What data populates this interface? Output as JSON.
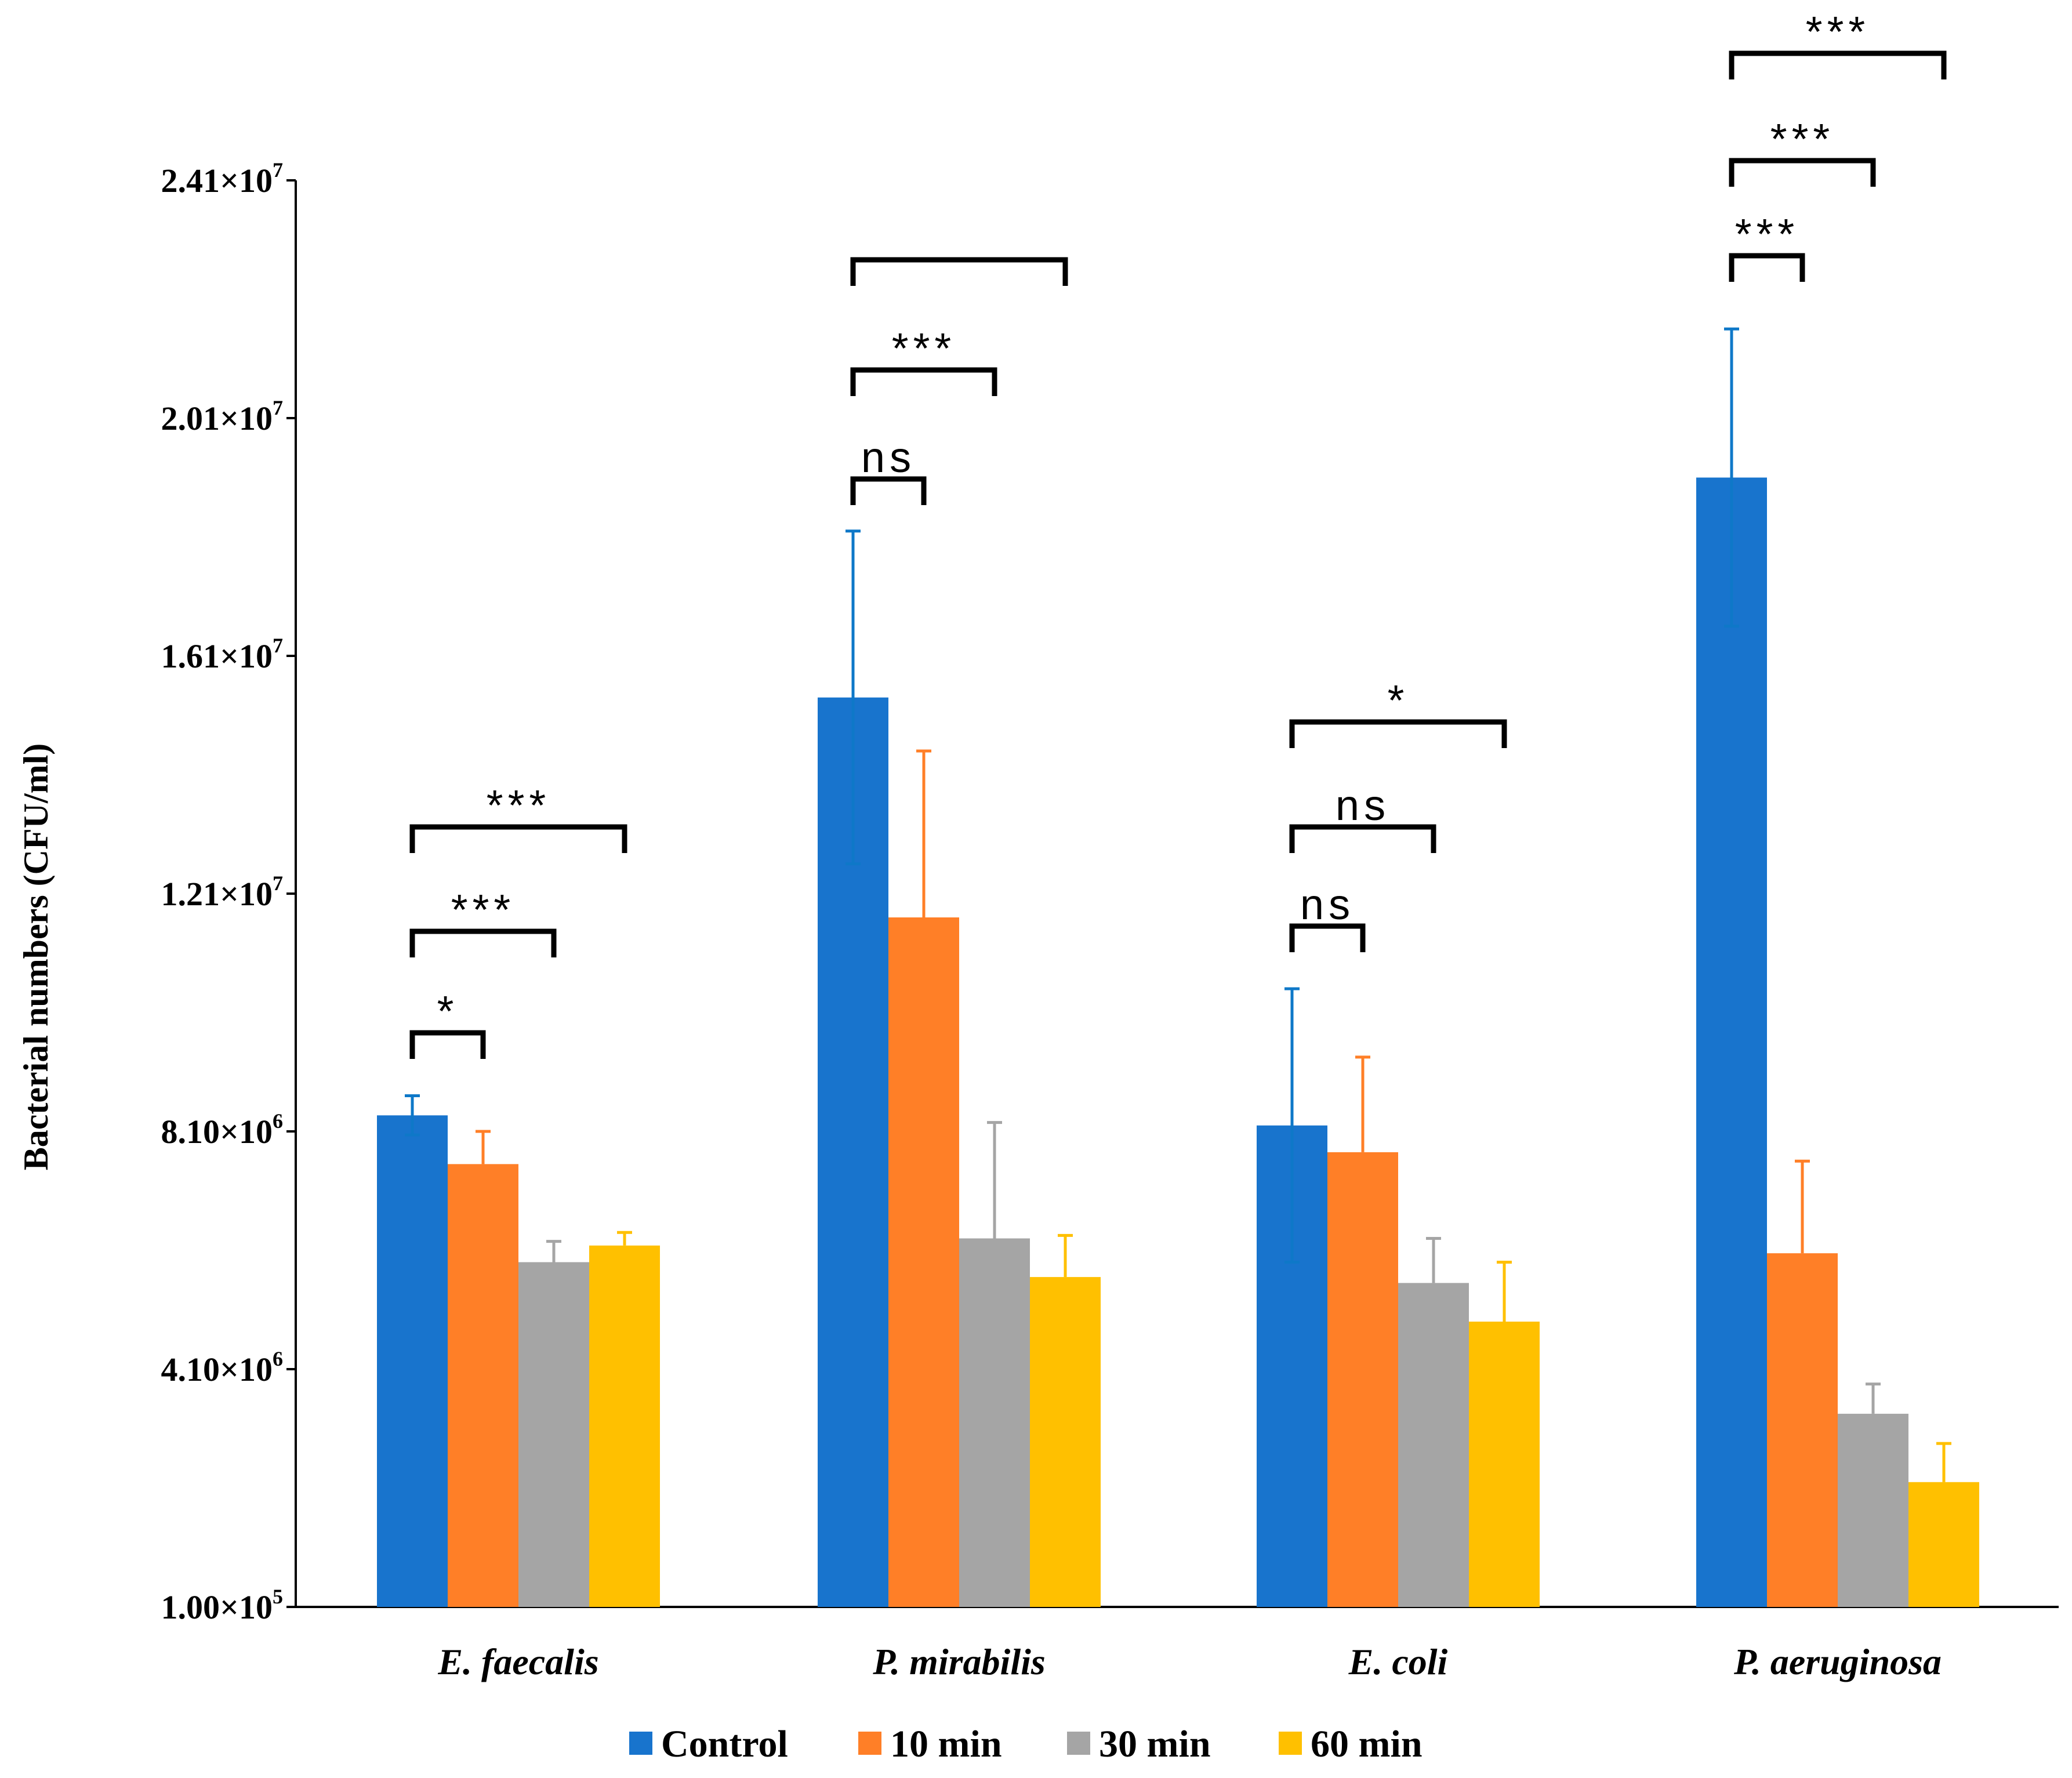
{
  "chart_data": {
    "type": "bar",
    "title": "",
    "xlabel": "",
    "ylabel": "Bacterial numbers (CFU/ml)",
    "ylim": [
      100000,
      24100000
    ],
    "y_tick_labels": [
      {
        "value": 100000,
        "mantissa": "1.00×10",
        "exp": "5"
      },
      {
        "value": 4100000,
        "mantissa": "4.10×10",
        "exp": "6"
      },
      {
        "value": 8100000,
        "mantissa": "8.10×10",
        "exp": "6"
      },
      {
        "value": 12100000,
        "mantissa": "1.21×10",
        "exp": "7"
      },
      {
        "value": 16100000,
        "mantissa": "1.61×10",
        "exp": "7"
      },
      {
        "value": 20100000,
        "mantissa": "2.01×10",
        "exp": "7"
      },
      {
        "value": 24100000,
        "mantissa": "2.41×10",
        "exp": "7"
      }
    ],
    "categories": [
      "E. faecalis",
      "P. mirabilis",
      "E. coli",
      "P. aeruginosa"
    ],
    "series": [
      {
        "name": "Control",
        "color": "#1874CD",
        "errcolor": "#0E78C8",
        "values": [
          8370000,
          15400000,
          8200000,
          19100000
        ],
        "errors": [
          330000,
          2800000,
          2300000,
          2500000
        ]
      },
      {
        "name": "10 min",
        "color": "#FF7F27",
        "errcolor": "#FF7F27",
        "values": [
          7550000,
          11700000,
          7750000,
          6050000
        ],
        "errors": [
          550000,
          2800000,
          1600000,
          1550000
        ]
      },
      {
        "name": "30 min",
        "color": "#A5A5A5",
        "errcolor": "#A5A5A5",
        "values": [
          5900000,
          6300000,
          5550000,
          3350000
        ],
        "errors": [
          350000,
          1950000,
          750000,
          500000
        ]
      },
      {
        "name": "60 min",
        "color": "#FFC000",
        "errcolor": "#FFC000",
        "values": [
          6180000,
          5650000,
          4900000,
          2200000
        ],
        "errors": [
          220000,
          700000,
          1000000,
          650000
        ]
      }
    ],
    "significance": [
      {
        "group": 0,
        "from": 0,
        "to": 1,
        "label": "*"
      },
      {
        "group": 0,
        "from": 0,
        "to": 2,
        "label": "***"
      },
      {
        "group": 0,
        "from": 0,
        "to": 3,
        "label": "***"
      },
      {
        "group": 1,
        "from": 0,
        "to": 1,
        "label": "ns"
      },
      {
        "group": 1,
        "from": 0,
        "to": 2,
        "label": "***"
      },
      {
        "group": 1,
        "from": 0,
        "to": 3,
        "label": ""
      },
      {
        "group": 2,
        "from": 0,
        "to": 1,
        "label": "ns"
      },
      {
        "group": 2,
        "from": 0,
        "to": 2,
        "label": "ns"
      },
      {
        "group": 2,
        "from": 0,
        "to": 3,
        "label": "*"
      },
      {
        "group": 3,
        "from": 0,
        "to": 1,
        "label": "***"
      },
      {
        "group": 3,
        "from": 0,
        "to": 2,
        "label": "***"
      },
      {
        "group": 3,
        "from": 0,
        "to": 3,
        "label": "***"
      }
    ],
    "legend": {
      "position": "bottom-center",
      "entries": [
        "Control",
        "10 min",
        "30 min",
        "60 min"
      ]
    },
    "grid": false
  }
}
